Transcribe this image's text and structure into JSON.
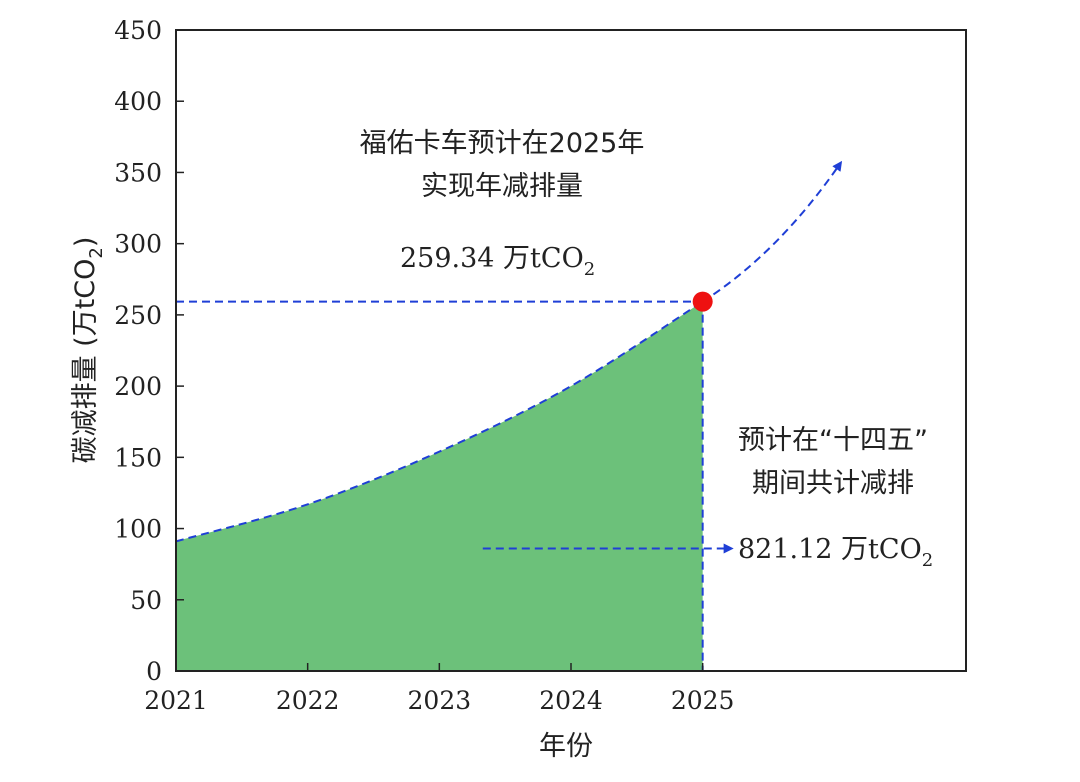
{
  "chart_data": {
    "type": "area",
    "xlabel": "年份",
    "ylabel": "碳减排量 (万tCO",
    "ylabel_sub": "2",
    "ylabel_close": ")",
    "x": [
      2021,
      2022,
      2023,
      2024,
      2025
    ],
    "x_ticks": [
      "2021",
      "2022",
      "2023",
      "2024",
      "2025"
    ],
    "xlim": [
      2021,
      2027
    ],
    "ylim": [
      0,
      450
    ],
    "y_ticks": [
      "0",
      "50",
      "100",
      "150",
      "200",
      "250",
      "300",
      "350",
      "400",
      "450"
    ],
    "series": [
      {
        "values": [
          91,
          117,
          154,
          200,
          259.34
        ],
        "color": "#6cc17a"
      }
    ],
    "projection": {
      "x": [
        2025,
        2026.05
      ],
      "y": [
        259.34,
        357
      ],
      "color": "#1f3fd6"
    },
    "highlight_point": {
      "x": 2025,
      "y": 259.34,
      "color": "#ee1111"
    },
    "annotations": {
      "target_line1": "福佑卡车预计在2025年",
      "target_line2": "实现年减排量",
      "target_value": "259.34 万tCO",
      "target_value_sub": "2",
      "total_line1": "预计在“十四五”",
      "total_line2": "期间共计减排",
      "total_value": "821.12 万tCO",
      "total_value_sub": "2"
    },
    "grid": false,
    "legend": "none"
  }
}
